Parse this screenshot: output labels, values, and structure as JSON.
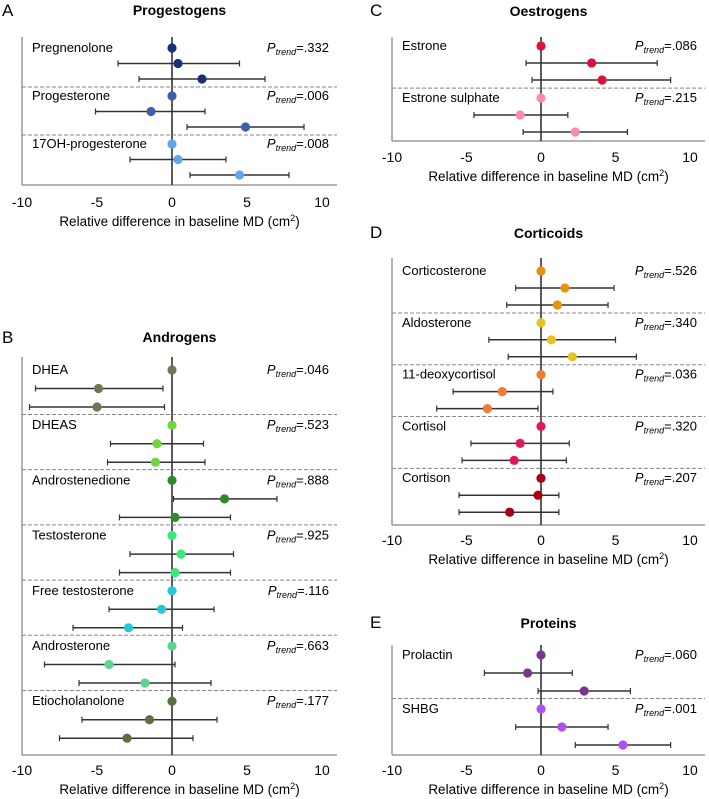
{
  "chart_data": [
    {
      "type": "forest",
      "panel": "A",
      "title": "Progestogens",
      "xlabel": "Relative difference in baseline MD (cm",
      "xlabel_sup": "2",
      "xlabel_end": ")",
      "xlim": [
        -10,
        10
      ],
      "xticks": [
        "-10",
        "-5",
        "0",
        "5",
        "10"
      ],
      "groups": [
        {
          "name": "Pregnenolone",
          "ptrend": ".332",
          "color": "#1b2f78",
          "points": [
            {
              "est": 0
            },
            {
              "est": 0.4,
              "lo": -3.6,
              "hi": 4.5
            },
            {
              "est": 2.0,
              "lo": -2.2,
              "hi": 6.2
            }
          ]
        },
        {
          "name": "Progesterone",
          "ptrend": ".006",
          "color": "#3f5db0",
          "points": [
            {
              "est": 0
            },
            {
              "est": -1.4,
              "lo": -5.1,
              "hi": 2.2
            },
            {
              "est": 4.9,
              "lo": 1.0,
              "hi": 8.8
            }
          ]
        },
        {
          "name": "17OH-progesterone",
          "ptrend": ".008",
          "color": "#5ea7ef",
          "points": [
            {
              "est": 0
            },
            {
              "est": 0.4,
              "lo": -2.8,
              "hi": 3.6
            },
            {
              "est": 4.5,
              "lo": 1.2,
              "hi": 7.8
            }
          ]
        }
      ]
    },
    {
      "type": "forest",
      "panel": "B",
      "title": "Androgens",
      "xlabel": "Relative difference in baseline MD (cm",
      "xlabel_sup": "2",
      "xlabel_end": ")",
      "xlim": [
        -10,
        10
      ],
      "xticks": [
        "-10",
        "-5",
        "0",
        "5",
        "10"
      ],
      "groups": [
        {
          "name": "DHEA",
          "ptrend": ".046",
          "color": "#6a7a52",
          "points": [
            {
              "est": 0
            },
            {
              "est": -4.9,
              "lo": -9.1,
              "hi": -0.6
            },
            {
              "est": -5.0,
              "lo": -9.5,
              "hi": -0.5
            }
          ]
        },
        {
          "name": "DHEAS",
          "ptrend": ".523",
          "color": "#6fd63f",
          "points": [
            {
              "est": 0
            },
            {
              "est": -1.0,
              "lo": -4.1,
              "hi": 2.1
            },
            {
              "est": -1.1,
              "lo": -4.3,
              "hi": 2.2
            }
          ]
        },
        {
          "name": "Androstenedione",
          "ptrend": ".888",
          "color": "#2d8a2d",
          "points": [
            {
              "est": 0
            },
            {
              "est": 3.5,
              "lo": 0.1,
              "hi": 7.0
            },
            {
              "est": 0.2,
              "lo": -3.5,
              "hi": 3.9
            }
          ]
        },
        {
          "name": "Testosterone",
          "ptrend": ".925",
          "color": "#3de87a",
          "points": [
            {
              "est": 0
            },
            {
              "est": 0.6,
              "lo": -2.8,
              "hi": 4.1
            },
            {
              "est": 0.2,
              "lo": -3.5,
              "hi": 3.9
            }
          ]
        },
        {
          "name": "Free testosterone",
          "ptrend": ".116",
          "color": "#27c6d8",
          "points": [
            {
              "est": 0
            },
            {
              "est": -0.7,
              "lo": -4.2,
              "hi": 2.8
            },
            {
              "est": -2.9,
              "lo": -6.6,
              "hi": 0.7
            }
          ]
        },
        {
          "name": "Androsterone",
          "ptrend": ".663",
          "color": "#5bd590",
          "points": [
            {
              "est": 0
            },
            {
              "est": -4.2,
              "lo": -8.5,
              "hi": 0.2
            },
            {
              "est": -1.8,
              "lo": -6.2,
              "hi": 2.6
            }
          ]
        },
        {
          "name": "Etiocholanolone",
          "ptrend": ".177",
          "color": "#5a7040",
          "points": [
            {
              "est": 0
            },
            {
              "est": -1.5,
              "lo": -6.0,
              "hi": 3.0
            },
            {
              "est": -3.0,
              "lo": -7.5,
              "hi": 1.4
            }
          ]
        }
      ]
    },
    {
      "type": "forest",
      "panel": "C",
      "title": "Oestrogens",
      "xlabel": "Relative difference in baseline MD (cm",
      "xlabel_sup": "2",
      "xlabel_end": ")",
      "xlim": [
        -10,
        10
      ],
      "xticks": [
        "-10",
        "-5",
        "0",
        "5",
        "10"
      ],
      "groups": [
        {
          "name": "Estrone",
          "ptrend": ".086",
          "color": "#d8123b",
          "points": [
            {
              "est": 0
            },
            {
              "est": 3.4,
              "lo": -1.0,
              "hi": 7.8
            },
            {
              "est": 4.1,
              "lo": -0.6,
              "hi": 8.7
            }
          ]
        },
        {
          "name": "Estrone sulphate",
          "ptrend": ".215",
          "color": "#ff87b2",
          "points": [
            {
              "est": 0
            },
            {
              "est": -1.4,
              "lo": -4.5,
              "hi": 1.8
            },
            {
              "est": 2.3,
              "lo": -1.2,
              "hi": 5.8
            }
          ]
        }
      ]
    },
    {
      "type": "forest",
      "panel": "D",
      "title": "Corticoids",
      "xlabel": "Relative difference in baseline MD (cm",
      "xlabel_sup": "2",
      "xlabel_end": ")",
      "xlim": [
        -10,
        10
      ],
      "xticks": [
        "-10",
        "-5",
        "0",
        "5",
        "10"
      ],
      "groups": [
        {
          "name": "Corticosterone",
          "ptrend": ".526",
          "color": "#e8920e",
          "points": [
            {
              "est": 0
            },
            {
              "est": 1.6,
              "lo": -1.7,
              "hi": 4.9
            },
            {
              "est": 1.1,
              "lo": -2.3,
              "hi": 4.5
            }
          ]
        },
        {
          "name": "Aldosterone",
          "ptrend": ".340",
          "color": "#e8c31f",
          "points": [
            {
              "est": 0
            },
            {
              "est": 0.7,
              "lo": -3.5,
              "hi": 5.0
            },
            {
              "est": 2.1,
              "lo": -2.2,
              "hi": 6.4
            }
          ]
        },
        {
          "name": "11-deoxycortisol",
          "ptrend": ".036",
          "color": "#f57a30",
          "points": [
            {
              "est": 0
            },
            {
              "est": -2.6,
              "lo": -5.9,
              "hi": 0.8
            },
            {
              "est": -3.6,
              "lo": -7.0,
              "hi": -0.2
            }
          ]
        },
        {
          "name": "Cortisol",
          "ptrend": ".320",
          "color": "#e0185a",
          "points": [
            {
              "est": 0
            },
            {
              "est": -1.4,
              "lo": -4.7,
              "hi": 1.9
            },
            {
              "est": -1.8,
              "lo": -5.3,
              "hi": 1.7
            }
          ]
        },
        {
          "name": "Cortison",
          "ptrend": ".207",
          "color": "#a80010",
          "points": [
            {
              "est": 0
            },
            {
              "est": -0.2,
              "lo": -5.5,
              "hi": 1.2
            },
            {
              "est": -2.1,
              "lo": -5.5,
              "hi": 1.2
            }
          ]
        }
      ]
    },
    {
      "type": "forest",
      "panel": "E",
      "title": "Proteins",
      "xlabel": "Relative difference in baseline MD (cm",
      "xlabel_sup": "2",
      "xlabel_end": ")",
      "xlim": [
        -10,
        10
      ],
      "xticks": [
        "-10",
        "-5",
        "0",
        "5",
        "10"
      ],
      "groups": [
        {
          "name": "Prolactin",
          "ptrend": ".060",
          "color": "#7a358f",
          "points": [
            {
              "est": 0
            },
            {
              "est": -0.9,
              "lo": -3.8,
              "hi": 2.1
            },
            {
              "est": 2.9,
              "lo": -0.2,
              "hi": 6.0
            }
          ]
        },
        {
          "name": "SHBG",
          "ptrend": ".001",
          "color": "#b04ff0",
          "points": [
            {
              "est": 0
            },
            {
              "est": 1.4,
              "lo": -1.7,
              "hi": 4.5
            },
            {
              "est": 5.5,
              "lo": 2.3,
              "hi": 8.7
            }
          ]
        }
      ]
    }
  ],
  "ptrend_label": {
    "p": "P",
    "sub": "trend",
    "eq": "="
  }
}
